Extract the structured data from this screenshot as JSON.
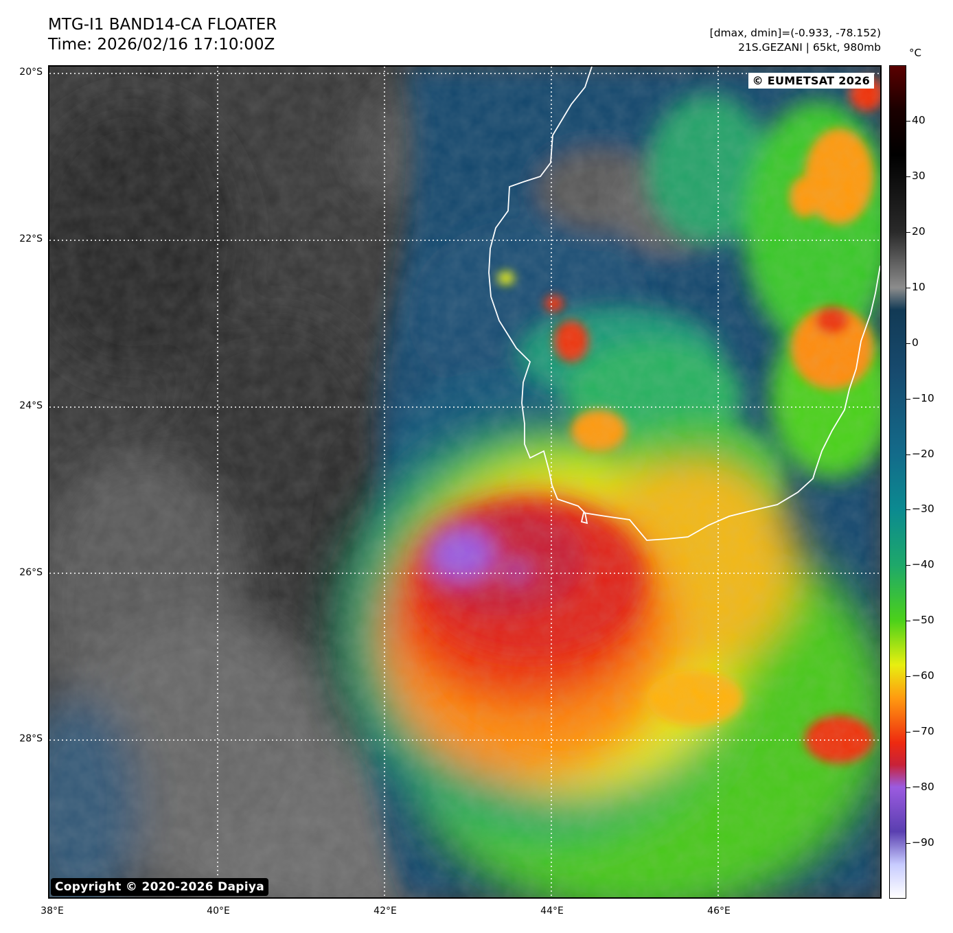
{
  "header": {
    "title_line1": "MTG-I1 BAND14-CA FLOATER",
    "title_line2": "Time: 2026/02/16 17:10:00Z",
    "stats_line": "[dmax, dmin]=(-0.933, -78.152)",
    "storm_line": "21S.GEZANI | 65kt, 980mb"
  },
  "map": {
    "latitude_labels": [
      {
        "text": "20°S",
        "lat": -20
      },
      {
        "text": "22°S",
        "lat": -22
      },
      {
        "text": "24°S",
        "lat": -24
      },
      {
        "text": "26°S",
        "lat": -26
      },
      {
        "text": "28°S",
        "lat": -28
      }
    ],
    "longitude_labels": [
      {
        "text": "38°E",
        "lon": 38
      },
      {
        "text": "40°E",
        "lon": 40
      },
      {
        "text": "42°E",
        "lon": 42
      },
      {
        "text": "44°E",
        "lon": 44
      },
      {
        "text": "46°E",
        "lon": 46
      }
    ],
    "lon_range": [
      38,
      48
    ],
    "lat_range": [
      -19.92,
      -29.92
    ],
    "gridlines": "dotted-white",
    "coastline_color": "#ffffff",
    "credit_eumetsat": "© EUMETSAT 2026",
    "credit_dapiya": "Copyright © 2020-2026 Dapiya"
  },
  "colorbar": {
    "unit": "°C",
    "range": [
      -100,
      50
    ],
    "ticks": [
      40,
      30,
      20,
      10,
      0,
      -10,
      -20,
      -30,
      -40,
      -50,
      -60,
      -70,
      -80,
      -90
    ],
    "tick_labels": [
      "40",
      "30",
      "20",
      "10",
      "0",
      "−10",
      "−20",
      "−30",
      "−40",
      "−50",
      "−60",
      "−70",
      "−80",
      "−90"
    ],
    "stops": [
      {
        "t": 50,
        "color": "#5a0000"
      },
      {
        "t": 42,
        "color": "#1a0000"
      },
      {
        "t": 34,
        "color": "#000000"
      },
      {
        "t": 20,
        "color": "#2a2a2a"
      },
      {
        "t": 10,
        "color": "#8c8c8c"
      },
      {
        "t": 6,
        "color": "#123a55"
      },
      {
        "t": -5,
        "color": "#174a6e"
      },
      {
        "t": -20,
        "color": "#136b8a"
      },
      {
        "t": -30,
        "color": "#0b8a90"
      },
      {
        "t": -40,
        "color": "#1ea86a"
      },
      {
        "t": -50,
        "color": "#4cd11a"
      },
      {
        "t": -58,
        "color": "#e8ef10"
      },
      {
        "t": -64,
        "color": "#ff9a10"
      },
      {
        "t": -72,
        "color": "#ee2a10"
      },
      {
        "t": -76,
        "color": "#c82238"
      },
      {
        "t": -80,
        "color": "#9b5be0"
      },
      {
        "t": -88,
        "color": "#5a3fb0"
      },
      {
        "t": -94,
        "color": "#c8ccff"
      },
      {
        "t": -100,
        "color": "#ffffff"
      }
    ]
  }
}
